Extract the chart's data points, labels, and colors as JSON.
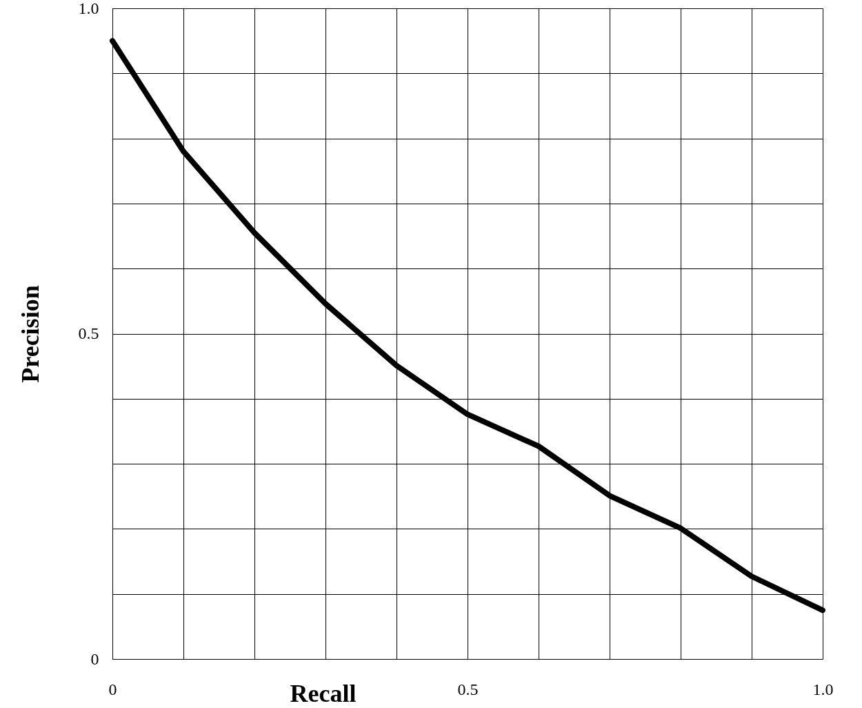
{
  "chart_data": {
    "type": "line",
    "xlabel": "Recall",
    "ylabel": "Precision",
    "x": [
      0,
      0.1,
      0.2,
      0.3,
      0.4,
      0.5,
      0.6,
      0.7,
      0.8,
      0.9,
      1.0
    ],
    "series": [
      {
        "color": "#000000",
        "values": [
          0.95,
          0.78,
          0.655,
          0.546,
          0.451,
          0.376,
          0.327,
          0.251,
          0.201,
          0.127,
          0.075
        ]
      }
    ],
    "xlim": [
      0,
      1
    ],
    "ylim": [
      0,
      1
    ],
    "xticks": [
      {
        "value": 0,
        "label": "0"
      },
      {
        "value": 0.1,
        "label": null
      },
      {
        "value": 0.2,
        "label": null
      },
      {
        "value": 0.3,
        "label": null
      },
      {
        "value": 0.4,
        "label": null
      },
      {
        "value": 0.5,
        "label": "0.5"
      },
      {
        "value": 0.6,
        "label": null
      },
      {
        "value": 0.7,
        "label": null
      },
      {
        "value": 0.8,
        "label": null
      },
      {
        "value": 0.9,
        "label": null
      },
      {
        "value": 1.0,
        "label": "1.0"
      }
    ],
    "yticks": [
      {
        "value": 0,
        "label": "0"
      },
      {
        "value": 0.1,
        "label": null
      },
      {
        "value": 0.2,
        "label": null
      },
      {
        "value": 0.3,
        "label": null
      },
      {
        "value": 0.4,
        "label": null
      },
      {
        "value": 0.5,
        "label": "0.5"
      },
      {
        "value": 0.6,
        "label": null
      },
      {
        "value": 0.7,
        "label": null
      },
      {
        "value": 0.8,
        "label": null
      },
      {
        "value": 0.9,
        "label": null
      },
      {
        "value": 1.0,
        "label": "1.0"
      }
    ],
    "grid": true,
    "marker": "none",
    "line_style": "solid"
  }
}
